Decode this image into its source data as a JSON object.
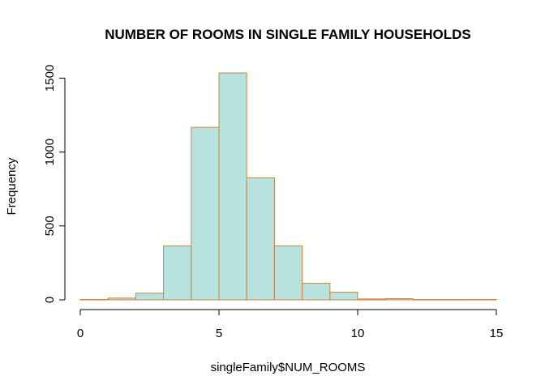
{
  "chart_data": {
    "type": "bar",
    "title": "NUMBER OF ROOMS IN SINGLE FAMILY HOUSEHOLDS",
    "xlabel": "singleFamily$NUM_ROOMS",
    "ylabel": "Frequency",
    "bins": [
      {
        "x0": 0,
        "x1": 1,
        "value": 3
      },
      {
        "x0": 1,
        "x1": 2,
        "value": 12
      },
      {
        "x0": 2,
        "x1": 3,
        "value": 45
      },
      {
        "x0": 3,
        "x1": 4,
        "value": 365
      },
      {
        "x0": 4,
        "x1": 5,
        "value": 1167
      },
      {
        "x0": 5,
        "x1": 6,
        "value": 1535
      },
      {
        "x0": 6,
        "x1": 7,
        "value": 825
      },
      {
        "x0": 7,
        "x1": 8,
        "value": 365
      },
      {
        "x0": 8,
        "x1": 9,
        "value": 112
      },
      {
        "x0": 9,
        "x1": 10,
        "value": 52
      },
      {
        "x0": 10,
        "x1": 11,
        "value": 6
      },
      {
        "x0": 11,
        "x1": 12,
        "value": 8
      },
      {
        "x0": 12,
        "x1": 13,
        "value": 2
      },
      {
        "x0": 13,
        "x1": 14,
        "value": 2
      },
      {
        "x0": 14,
        "x1": 15,
        "value": 3
      }
    ],
    "xlim": [
      0,
      15
    ],
    "ylim": [
      0,
      1535
    ],
    "x_ticks": [
      0,
      5,
      10,
      15
    ],
    "y_ticks": [
      0,
      500,
      1000,
      1500
    ],
    "bar_fill": "#b6e3df",
    "bar_border": "#d2803a",
    "grid": false,
    "legend": "none"
  }
}
